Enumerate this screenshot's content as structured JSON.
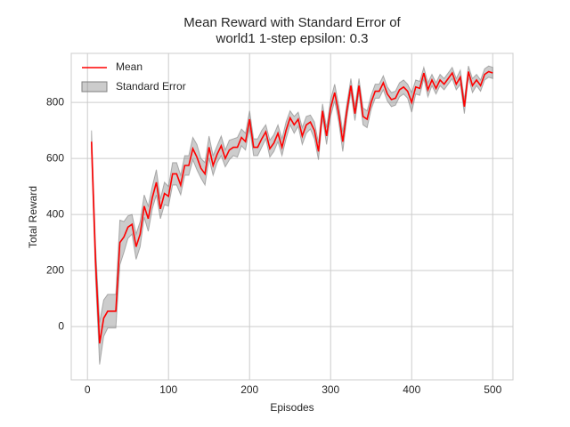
{
  "chart_data": {
    "type": "line",
    "title": "Mean Reward with Standard Error of",
    "subtitle": "world1 1-step epsilon: 0.3",
    "xlabel": "Episodes",
    "ylabel": "Total Reward",
    "x": [
      5,
      10,
      15,
      20,
      25,
      30,
      35,
      40,
      45,
      50,
      55,
      60,
      65,
      70,
      75,
      80,
      85,
      90,
      95,
      100,
      105,
      110,
      115,
      120,
      125,
      130,
      135,
      140,
      145,
      150,
      155,
      160,
      165,
      170,
      175,
      180,
      185,
      190,
      195,
      200,
      205,
      210,
      215,
      220,
      225,
      230,
      235,
      240,
      245,
      250,
      255,
      260,
      265,
      270,
      275,
      280,
      285,
      290,
      295,
      300,
      305,
      310,
      315,
      320,
      325,
      330,
      335,
      340,
      345,
      350,
      355,
      360,
      365,
      370,
      375,
      380,
      385,
      390,
      395,
      400,
      405,
      410,
      415,
      420,
      425,
      430,
      435,
      440,
      445,
      450,
      455,
      460,
      465,
      470,
      475,
      480,
      485,
      490,
      495,
      500
    ],
    "series": [
      {
        "name": "Mean",
        "color": "#ff0000",
        "values": [
          660,
          230,
          -60,
          30,
          55,
          55,
          55,
          300,
          320,
          355,
          365,
          285,
          330,
          430,
          385,
          460,
          515,
          420,
          475,
          465,
          545,
          545,
          505,
          575,
          575,
          635,
          605,
          565,
          545,
          640,
          575,
          615,
          645,
          600,
          630,
          640,
          640,
          675,
          660,
          740,
          640,
          640,
          670,
          695,
          635,
          655,
          690,
          640,
          700,
          745,
          720,
          740,
          680,
          720,
          730,
          700,
          625,
          770,
          680,
          780,
          835,
          760,
          660,
          770,
          860,
          760,
          860,
          750,
          740,
          800,
          840,
          840,
          870,
          830,
          810,
          815,
          845,
          855,
          840,
          800,
          855,
          850,
          905,
          845,
          880,
          850,
          880,
          865,
          885,
          905,
          865,
          890,
          785,
          910,
          860,
          880,
          860,
          900,
          910,
          905
        ]
      },
      {
        "name": "Standard Error",
        "color": "#808080",
        "values": [
          40,
          60,
          75,
          65,
          60,
          60,
          60,
          80,
          55,
          40,
          35,
          45,
          45,
          40,
          45,
          40,
          45,
          35,
          40,
          35,
          40,
          40,
          35,
          35,
          35,
          40,
          45,
          35,
          40,
          40,
          35,
          30,
          35,
          30,
          35,
          30,
          35,
          30,
          30,
          30,
          30,
          30,
          30,
          25,
          30,
          30,
          30,
          30,
          30,
          25,
          30,
          25,
          30,
          30,
          25,
          30,
          30,
          25,
          30,
          30,
          30,
          30,
          35,
          25,
          25,
          25,
          25,
          30,
          30,
          25,
          25,
          25,
          25,
          25,
          25,
          25,
          25,
          25,
          25,
          35,
          25,
          25,
          20,
          25,
          20,
          20,
          20,
          20,
          20,
          20,
          20,
          25,
          25,
          20,
          25,
          20,
          20,
          20,
          20,
          20
        ]
      }
    ],
    "xlim": [
      -20,
      525
    ],
    "ylim": [
      -190,
      975
    ],
    "xticks": [
      0,
      100,
      200,
      300,
      400,
      500
    ],
    "yticks": [
      0,
      200,
      400,
      600,
      800
    ],
    "grid": true,
    "legend": "upper left"
  }
}
